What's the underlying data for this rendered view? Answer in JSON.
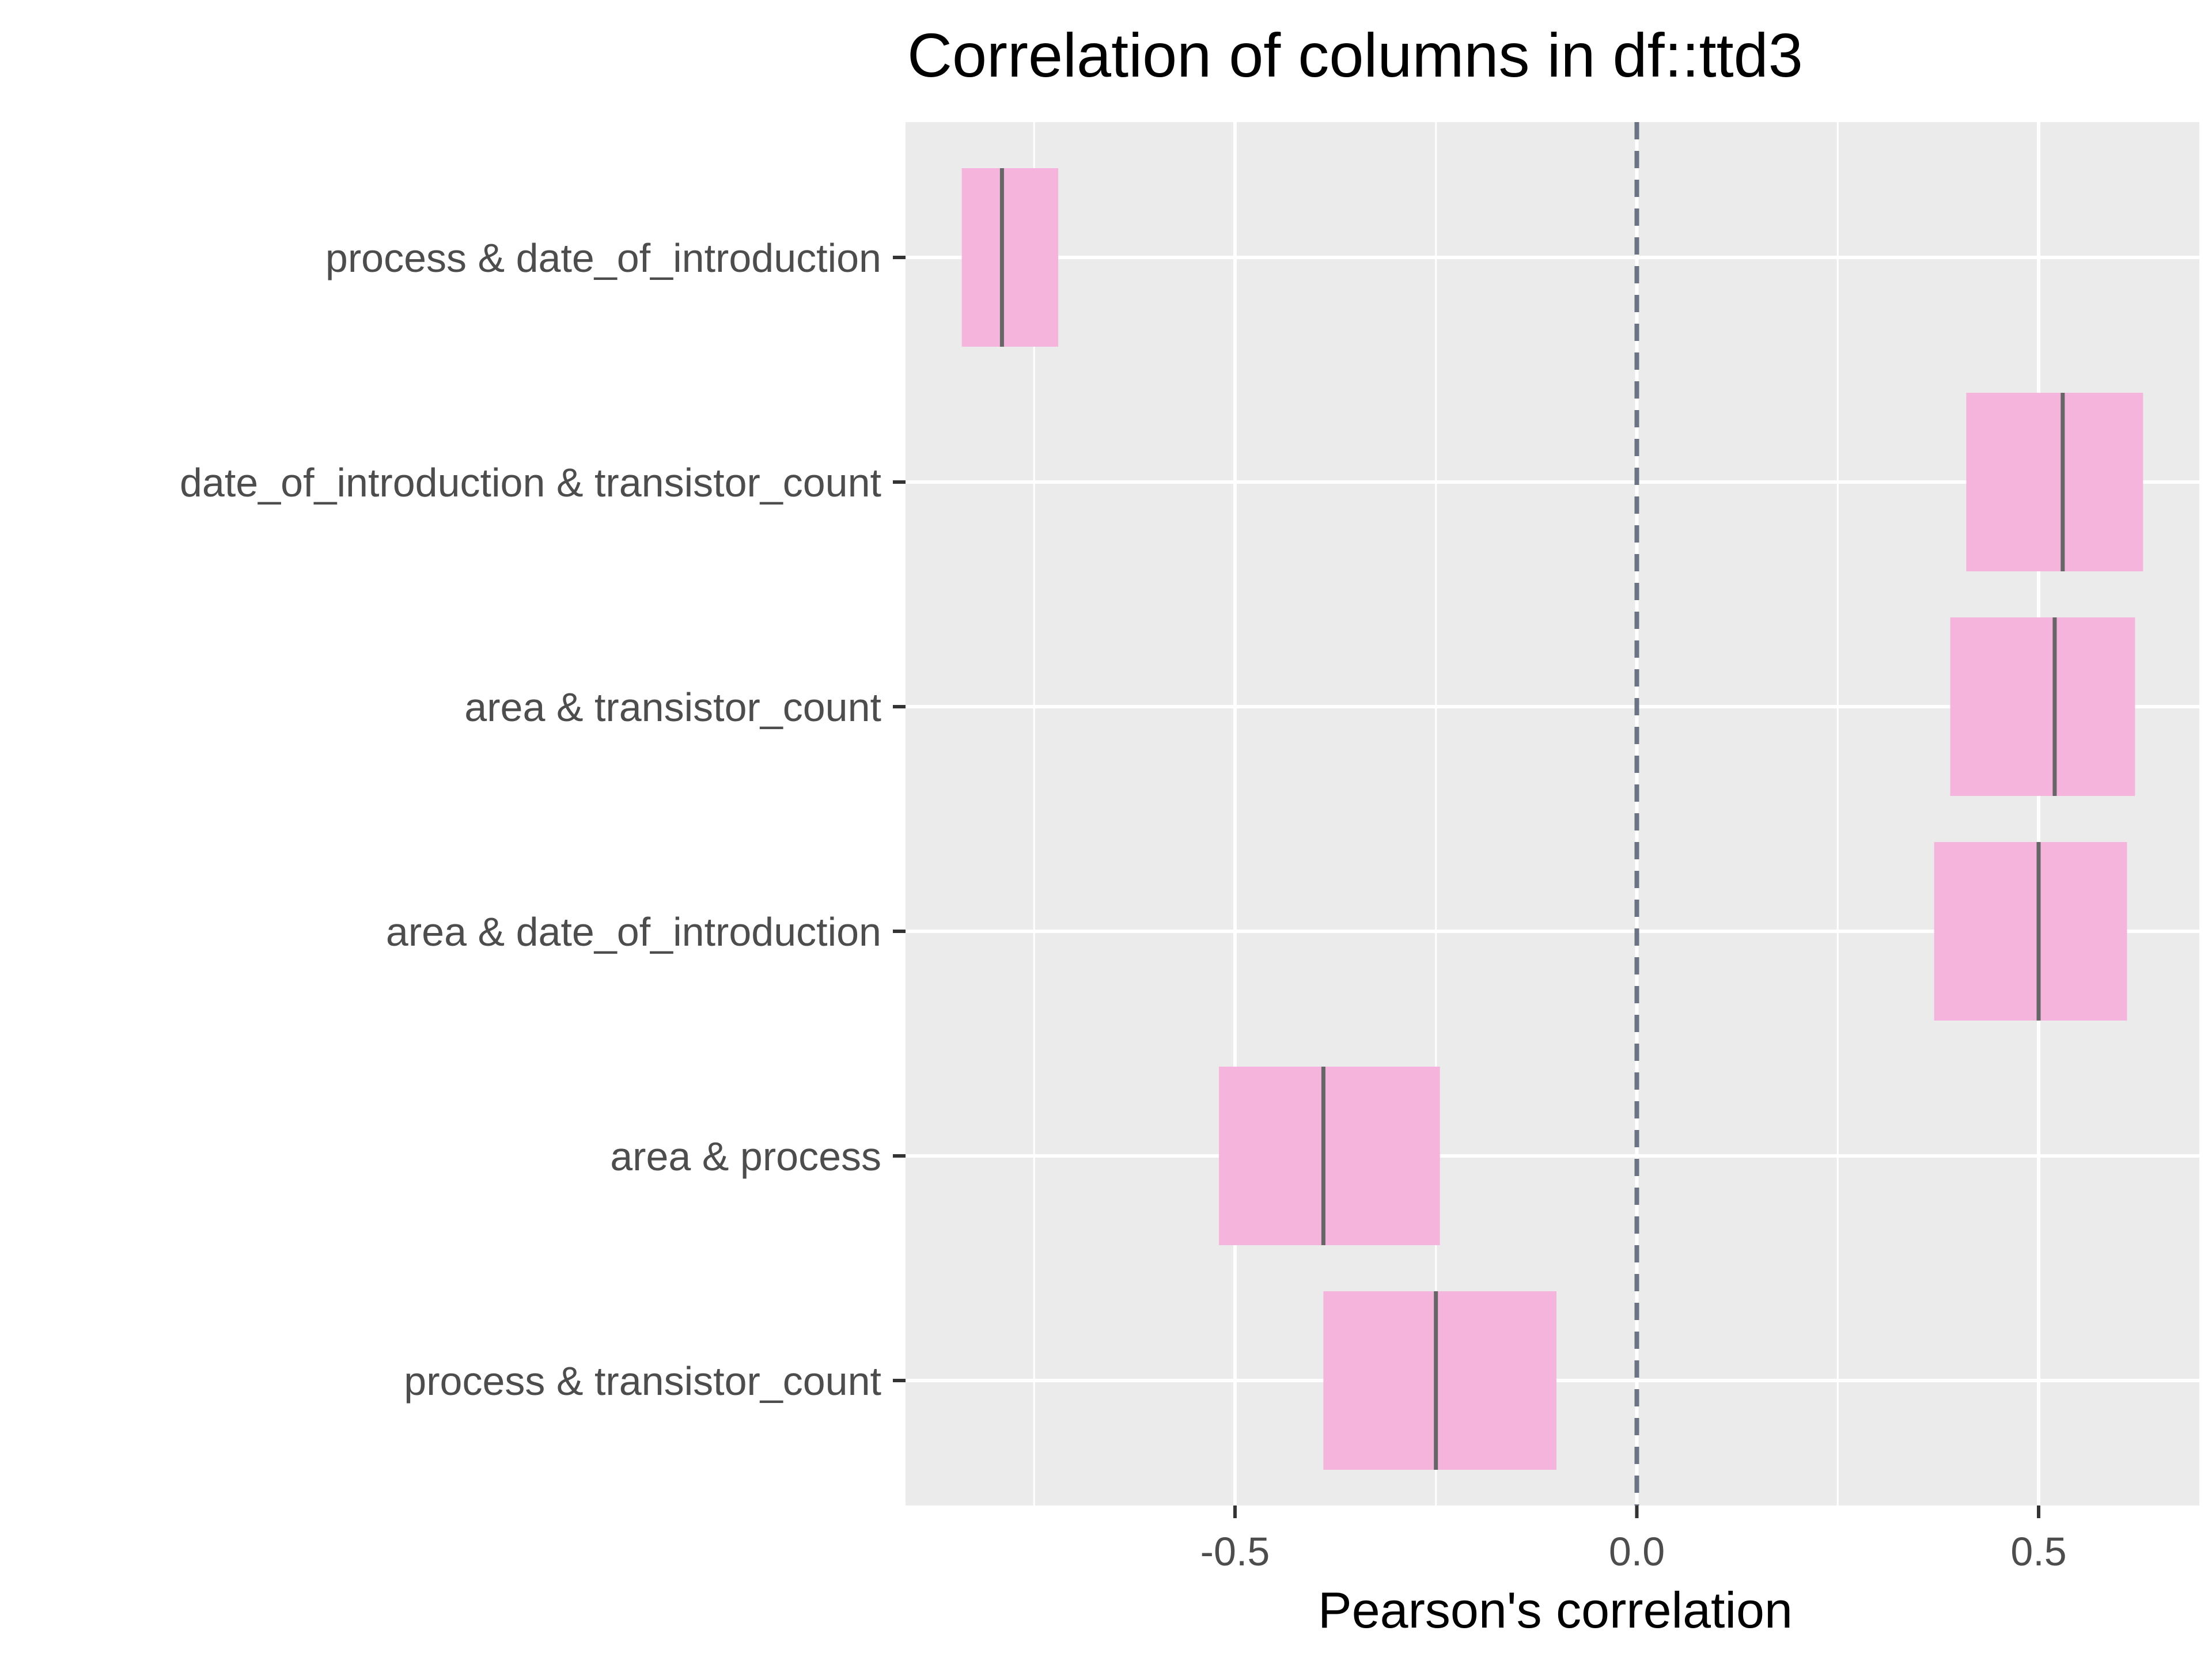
{
  "chart_data": {
    "type": "interval",
    "title": "Correlation of columns in df::ttd3",
    "xlabel": "Pearson's correlation",
    "ylabel": "",
    "xlim": [
      -0.91,
      0.7
    ],
    "x_ticks": [
      -0.5,
      0.0,
      0.5
    ],
    "x_tick_labels": [
      "-0.5",
      "0.0",
      "0.5"
    ],
    "x_minor_ticks": [
      -0.75,
      -0.25,
      0.25
    ],
    "reference_line": {
      "x": 0.0,
      "style": "dashed"
    },
    "grid": true,
    "legend": "none",
    "colors": {
      "panel_background": "#ebebeb",
      "grid": "#ffffff",
      "interval_fill": "#f4b4db",
      "estimate": "#666666",
      "reference": "#6b7385"
    },
    "series": [
      {
        "label": "process & date_of_introduction",
        "estimate": -0.79,
        "lower": -0.84,
        "upper": -0.72
      },
      {
        "label": "date_of_introduction & transistor_count",
        "estimate": 0.53,
        "lower": 0.41,
        "upper": 0.63
      },
      {
        "label": "area & transistor_count",
        "estimate": 0.52,
        "lower": 0.39,
        "upper": 0.62
      },
      {
        "label": "area & date_of_introduction",
        "estimate": 0.5,
        "lower": 0.37,
        "upper": 0.61
      },
      {
        "label": "area & process",
        "estimate": -0.39,
        "lower": -0.52,
        "upper": -0.245
      },
      {
        "label": "process & transistor_count",
        "estimate": -0.25,
        "lower": -0.39,
        "upper": -0.1
      }
    ]
  }
}
